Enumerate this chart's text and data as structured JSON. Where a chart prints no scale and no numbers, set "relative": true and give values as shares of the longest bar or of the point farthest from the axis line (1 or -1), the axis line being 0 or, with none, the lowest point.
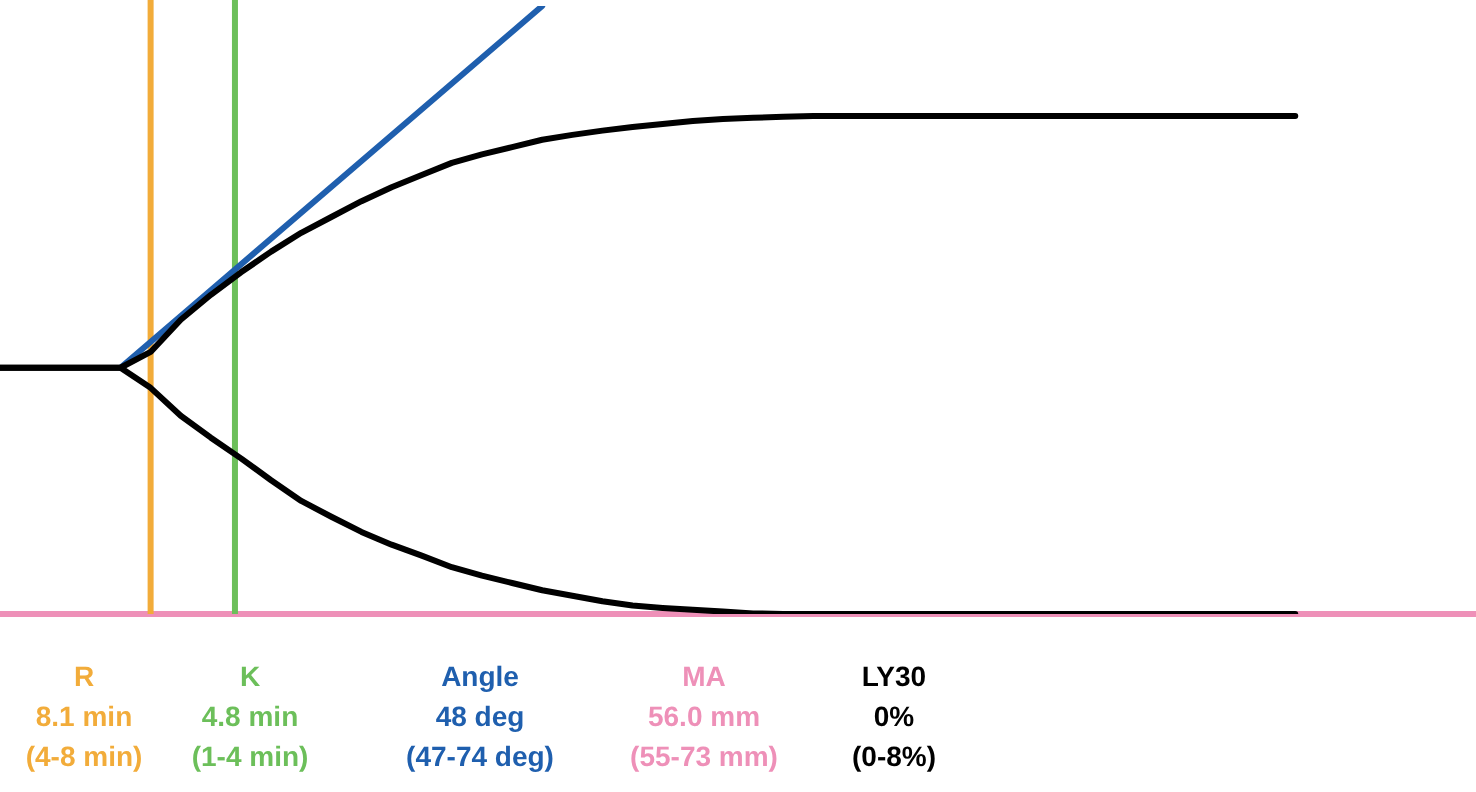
{
  "chart_data": {
    "type": "line",
    "relative": true,
    "marker": "none",
    "line_style": "solid",
    "categories": [
      null,
      null,
      null,
      null,
      null,
      null,
      null,
      null,
      null,
      null,
      null,
      null,
      null,
      null,
      null,
      null,
      null,
      null,
      null,
      null,
      null,
      null,
      null,
      null,
      null,
      null,
      null,
      null,
      null,
      null,
      null,
      null,
      null,
      null,
      null,
      null,
      null,
      null,
      null,
      null,
      null,
      null,
      null,
      null,
      null,
      null,
      null,
      null,
      null,
      null
    ],
    "series": [
      {
        "color": "#000000",
        "values": [
          0.405,
          0.405,
          0.405,
          0.405,
          0.405,
          0.431,
          0.484,
          0.525,
          0.562,
          0.596,
          0.627,
          0.653,
          0.679,
          0.702,
          0.722,
          0.742,
          0.756,
          0.768,
          0.78,
          0.788,
          0.795,
          0.801,
          0.806,
          0.811,
          0.814,
          0.816,
          0.818,
          0.819,
          0.819,
          0.819,
          0.819,
          0.819,
          0.819,
          0.819,
          0.819,
          0.819,
          0.819,
          0.819,
          0.819,
          0.819,
          0.819,
          0.819,
          0.819,
          0.819,
          null,
          null,
          null,
          null,
          null,
          null
        ]
      },
      {
        "color": "#000000",
        "values": [
          0.405,
          0.405,
          0.405,
          0.405,
          0.405,
          0.372,
          0.326,
          0.29,
          0.256,
          0.22,
          0.186,
          0.16,
          0.135,
          0.114,
          0.096,
          0.077,
          0.063,
          0.051,
          0.039,
          0.03,
          0.021,
          0.014,
          0.01,
          0.007,
          0.004,
          0.001,
          0,
          0,
          0,
          0,
          0,
          0,
          0,
          0,
          0,
          0,
          0,
          0,
          0,
          0,
          0,
          0,
          0,
          0,
          null,
          null,
          null,
          null,
          null,
          null
        ]
      },
      {
        "color": "#1f5fae",
        "values": [
          null,
          null,
          null,
          null,
          0.405,
          null,
          null,
          null,
          null,
          null,
          null,
          null,
          null,
          null,
          null,
          null,
          null,
          null,
          1,
          null,
          null,
          null,
          null,
          null,
          null,
          null,
          null,
          null,
          null,
          null,
          null,
          null,
          null,
          null,
          null,
          null,
          null,
          null,
          null,
          null,
          null,
          null,
          null,
          null,
          null,
          null,
          null,
          null,
          null,
          null
        ]
      }
    ],
    "annotations": [
      "R\n8.1 min\n(4-8 min)",
      "K\n4.8 min\n(1-4 min)",
      "Angle\n48 deg\n(47-74 deg)",
      "MA\n56.0 mm\n(55-73 mm)",
      "LY30\n0%\n(0-8%)"
    ]
  }
}
